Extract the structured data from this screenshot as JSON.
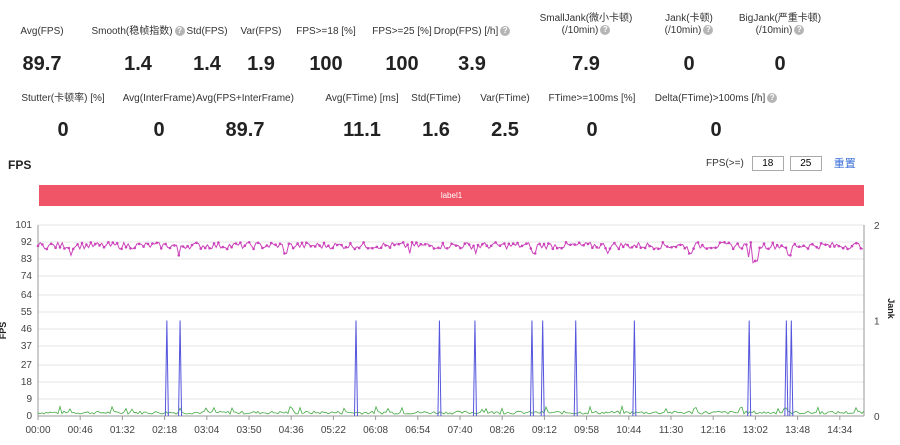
{
  "stats_row1": [
    {
      "label": "Avg(FPS)",
      "value": "89.7",
      "help": false
    },
    {
      "label": "Smooth(稳帧指数)",
      "value": "1.4",
      "help": true
    },
    {
      "label": "Std(FPS)",
      "value": "1.4",
      "help": false
    },
    {
      "label": "Var(FPS)",
      "value": "1.9",
      "help": false
    },
    {
      "label": "FPS>=18 [%]",
      "value": "100",
      "help": false
    },
    {
      "label": "FPS>=25 [%]",
      "value": "100",
      "help": false
    },
    {
      "label": "Drop(FPS) [/h]",
      "value": "3.9",
      "help": true
    },
    {
      "label": "SmallJank(微小卡顿)",
      "label2": "(/10min)",
      "value": "7.9",
      "help": true
    },
    {
      "label": "Jank(卡顿)",
      "label2": "(/10min)",
      "value": "0",
      "help": true
    },
    {
      "label": "BigJank(严重卡顿)",
      "label2": "(/10min)",
      "value": "0",
      "help": true
    }
  ],
  "stats_row2": [
    {
      "label": "Stutter(卡顿率) [%]",
      "value": "0",
      "help": false
    },
    {
      "label": "Avg(InterFrame)",
      "value": "0",
      "help": false
    },
    {
      "label": "Avg(FPS+InterFrame)",
      "value": "89.7",
      "help": false
    },
    {
      "label": "Avg(FTime) [ms]",
      "value": "11.1",
      "help": false
    },
    {
      "label": "Std(FTime)",
      "value": "1.6",
      "help": false
    },
    {
      "label": "Var(FTime)",
      "value": "2.5",
      "help": false
    },
    {
      "label": "FTime>=100ms [%]",
      "value": "0",
      "help": false
    },
    {
      "label": "Delta(FTime)>100ms [/h]",
      "value": "0",
      "help": true
    }
  ],
  "help_glyph": "?",
  "fps_section": {
    "title": "FPS",
    "threshold_label": "FPS(>=)",
    "threshold1": "18",
    "threshold2": "25",
    "reset_label": "重置"
  },
  "label_bar": "label1",
  "chart_data": {
    "type": "line",
    "left_axis_label": "FPS",
    "right_axis_label": "Jank",
    "y_ticks": [
      0,
      9,
      18,
      27,
      37,
      46,
      55,
      64,
      74,
      83,
      92,
      101
    ],
    "y_range": [
      0,
      101
    ],
    "right_y_ticks": [
      0,
      1,
      2
    ],
    "right_y_range": [
      0,
      2
    ],
    "x_ticks": [
      "00:00",
      "00:46",
      "01:32",
      "02:18",
      "03:04",
      "03:50",
      "04:36",
      "05:22",
      "06:08",
      "06:54",
      "07:40",
      "08:26",
      "09:12",
      "09:58",
      "10:44",
      "11:30",
      "12:16",
      "13:02",
      "13:48",
      "14:34"
    ],
    "series": [
      {
        "color": "#cc44bb",
        "description": "FPS around 90, with dips to about 81-86",
        "mean": 89.7,
        "dips": [
          [
            0.04,
            85
          ],
          [
            0.17,
            85
          ],
          [
            0.3,
            86
          ],
          [
            0.45,
            86
          ],
          [
            0.53,
            86
          ],
          [
            0.6,
            86
          ],
          [
            0.69,
            86
          ],
          [
            0.79,
            86
          ],
          [
            0.86,
            84
          ],
          [
            0.865,
            81
          ],
          [
            0.87,
            82
          ],
          [
            0.91,
            85
          ]
        ]
      },
      {
        "color": "#5555dd",
        "axis": "right",
        "description": "Jank spikes to 1",
        "spikes": [
          0.156,
          0.172,
          0.385,
          0.486,
          0.529,
          0.598,
          0.611,
          0.651,
          0.722,
          0.861,
          0.906,
          0.912
        ]
      },
      {
        "color": "#44aa44",
        "description": "Near zero, around 1-2"
      }
    ],
    "grid": true
  }
}
